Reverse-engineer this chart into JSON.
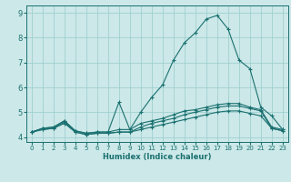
{
  "x_ticks": [
    0,
    1,
    2,
    3,
    4,
    5,
    6,
    7,
    8,
    9,
    10,
    11,
    12,
    13,
    14,
    15,
    16,
    17,
    18,
    19,
    20,
    21,
    22,
    23
  ],
  "xlabel": "Humidex (Indice chaleur)",
  "ylim": [
    3.8,
    9.3
  ],
  "xlim": [
    -0.5,
    23.5
  ],
  "yticks": [
    4,
    5,
    6,
    7,
    8,
    9
  ],
  "bg_color": "#cce8e8",
  "grid_color": "#99cccc",
  "line_color": "#1a7070",
  "line1_y": [
    4.2,
    4.35,
    4.4,
    4.65,
    4.25,
    4.15,
    4.2,
    4.2,
    5.4,
    4.3,
    5.0,
    5.6,
    6.1,
    7.1,
    7.8,
    8.2,
    8.75,
    8.9,
    8.35,
    7.1,
    6.75,
    5.2,
    4.85,
    4.3
  ],
  "line2_y": [
    4.2,
    4.35,
    4.4,
    4.65,
    4.25,
    4.15,
    4.2,
    4.2,
    4.3,
    4.3,
    4.55,
    4.65,
    4.75,
    4.9,
    5.05,
    5.1,
    5.2,
    5.3,
    5.35,
    5.35,
    5.2,
    5.1,
    4.4,
    4.3
  ],
  "line3_y": [
    4.2,
    4.3,
    4.35,
    4.6,
    4.2,
    4.1,
    4.15,
    4.15,
    4.2,
    4.2,
    4.4,
    4.55,
    4.65,
    4.75,
    4.9,
    5.0,
    5.1,
    5.2,
    5.25,
    5.25,
    5.15,
    5.05,
    4.35,
    4.25
  ],
  "line4_y": [
    4.2,
    4.3,
    4.35,
    4.55,
    4.2,
    4.1,
    4.15,
    4.15,
    4.2,
    4.2,
    4.3,
    4.4,
    4.5,
    4.6,
    4.7,
    4.8,
    4.9,
    5.0,
    5.05,
    5.05,
    4.95,
    4.85,
    4.35,
    4.25
  ]
}
